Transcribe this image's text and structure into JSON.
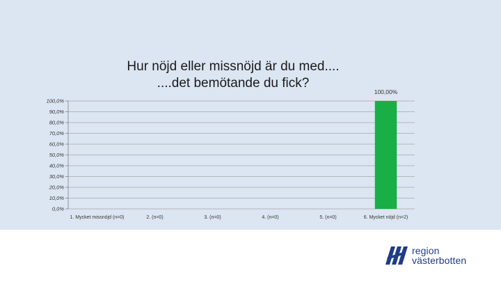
{
  "chart_data": {
    "type": "bar",
    "title_lines": [
      "Hur nöjd eller missnöjd är du med....",
      "....det bemötande du fick?"
    ],
    "categories": [
      "1. Mycket missnöjd (n=0)",
      "2. (n=0)",
      "3. (n=0)",
      "4. (n=0)",
      "5. (n=0)",
      "6. Mycket nöjd (n=2)"
    ],
    "values": [
      0,
      0,
      0,
      0,
      0,
      100
    ],
    "data_labels": [
      "",
      "",
      "",
      "",
      "",
      "100,00%"
    ],
    "ylim": [
      0,
      100
    ],
    "yticks": [
      0,
      10,
      20,
      30,
      40,
      50,
      60,
      70,
      80,
      90,
      100
    ],
    "ytick_labels": [
      "0,0%",
      "10,0%",
      "20,0%",
      "30,0%",
      "40,0%",
      "50,0%",
      "60,0%",
      "70,0%",
      "80,0%",
      "90,0%",
      "100,0%"
    ],
    "grid": true,
    "bar_color": "#1aae47",
    "xlabel": "",
    "ylabel": ""
  },
  "logo": {
    "line1": "region",
    "line2": "västerbotten",
    "color": "#1f3c88"
  }
}
